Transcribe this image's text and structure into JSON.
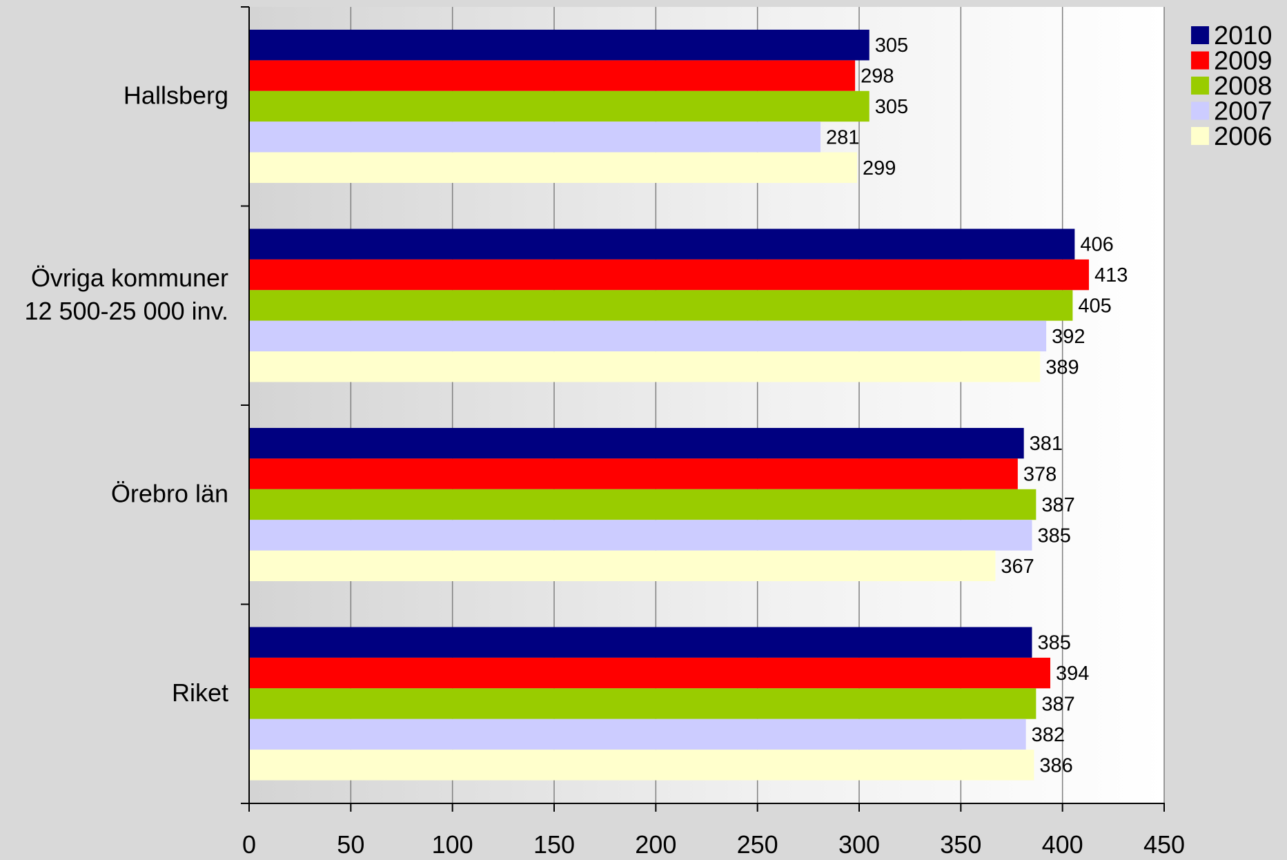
{
  "chart_data": {
    "type": "bar",
    "orientation": "horizontal",
    "title": "",
    "xlabel": "",
    "ylabel": "",
    "xlim": [
      0,
      450
    ],
    "x_ticks": [
      0,
      50,
      100,
      150,
      200,
      250,
      300,
      350,
      400,
      450
    ],
    "x_tick_labels": [
      "0",
      "50",
      "100",
      "150",
      "200",
      "250",
      "300",
      "350",
      "400",
      "450"
    ],
    "grid": "vertical",
    "legend_position": "top-right",
    "categories": [
      [
        "Hallsberg"
      ],
      [
        "Övriga kommuner",
        "12 500-25 000 inv."
      ],
      [
        "Örebro län"
      ],
      [
        "Riket"
      ]
    ],
    "series": [
      {
        "name": "2010",
        "color": "#000080",
        "values": [
          305,
          406,
          381,
          385
        ]
      },
      {
        "name": "2009",
        "color": "#ff0000",
        "values": [
          298,
          413,
          378,
          394
        ]
      },
      {
        "name": "2008",
        "color": "#99cc00",
        "values": [
          305,
          405,
          387,
          387
        ]
      },
      {
        "name": "2007",
        "color": "#ccccff",
        "values": [
          281,
          392,
          385,
          382
        ]
      },
      {
        "name": "2006",
        "color": "#ffffcc",
        "values": [
          299,
          389,
          367,
          386
        ]
      }
    ],
    "data_labels": true
  }
}
